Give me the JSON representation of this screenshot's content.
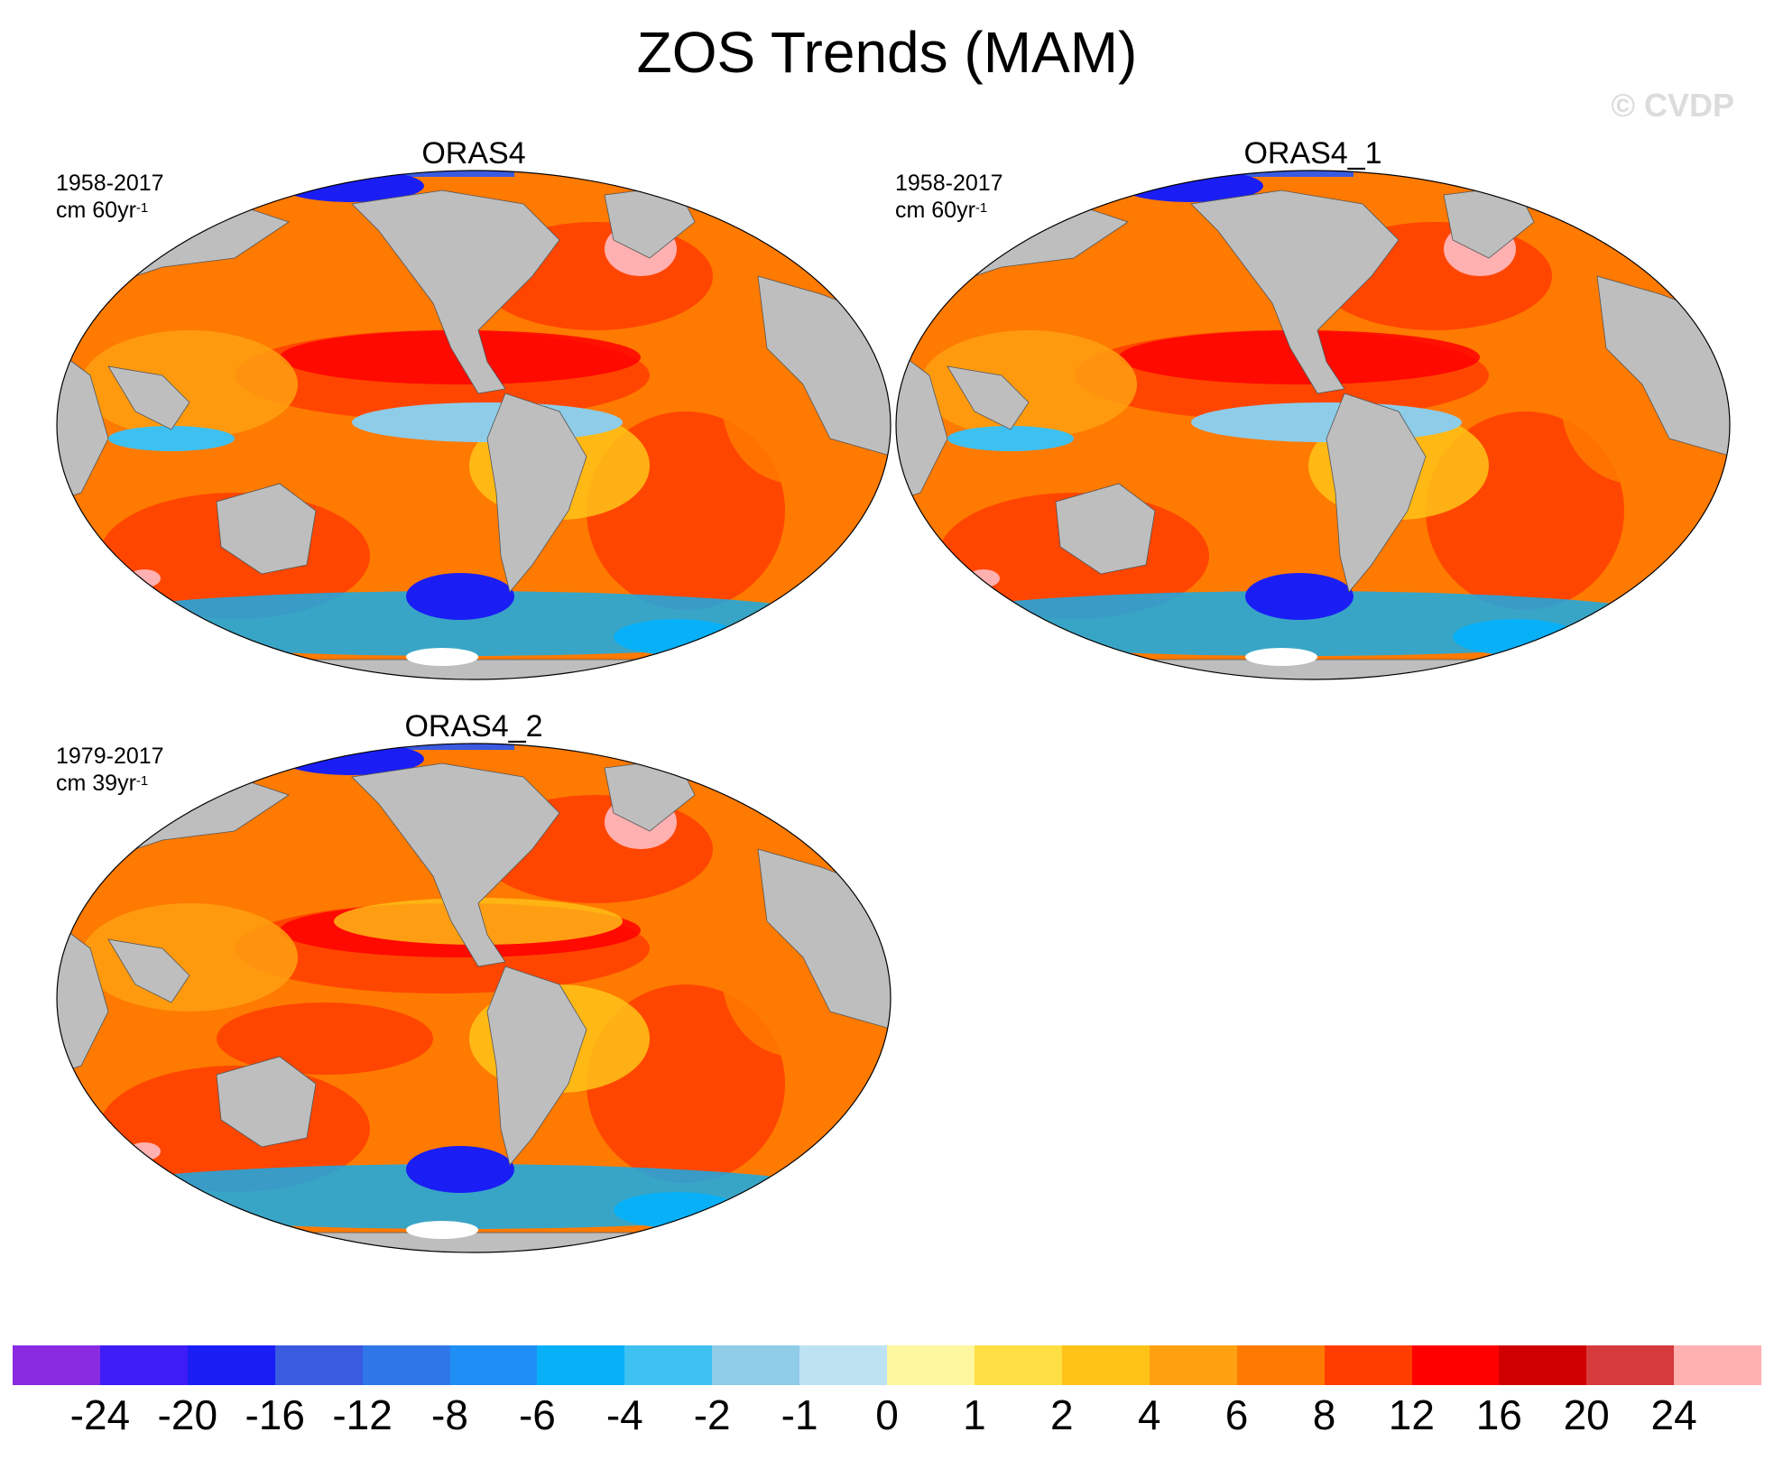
{
  "title": "ZOS Trends (MAM)",
  "watermark": "© CVDP",
  "panels": [
    {
      "title": "ORAS4",
      "period": "1958-2017",
      "units_base": "cm 60yr",
      "units_exp": "-1"
    },
    {
      "title": "ORAS4_1",
      "period": "1958-2017",
      "units_base": "cm 60yr",
      "units_exp": "-1"
    },
    {
      "title": "ORAS4_2",
      "period": "1979-2017",
      "units_base": "cm 39yr",
      "units_exp": "-1"
    }
  ],
  "colorbar": {
    "colors": [
      "#8a2be2",
      "#3d1cf5",
      "#1a1ef5",
      "#3a5ae0",
      "#2f76e8",
      "#1f8ff5",
      "#08b0f7",
      "#3ec0f0",
      "#8ecce8",
      "#bde2f2",
      "#fff6a0",
      "#ffe044",
      "#ffc318",
      "#ffa010",
      "#ff7a00",
      "#ff3d00",
      "#ff0000",
      "#d10000",
      "#d63a3a",
      "#ffb0b0"
    ],
    "labels": [
      "-24",
      "-20",
      "-16",
      "-12",
      "-8",
      "-6",
      "-4",
      "-2",
      "-1",
      "0",
      "1",
      "2",
      "4",
      "6",
      "8",
      "12",
      "16",
      "20",
      "24"
    ]
  },
  "map": {
    "land_color": "#bebebe",
    "ocean_base_color": "#ff7a00"
  }
}
